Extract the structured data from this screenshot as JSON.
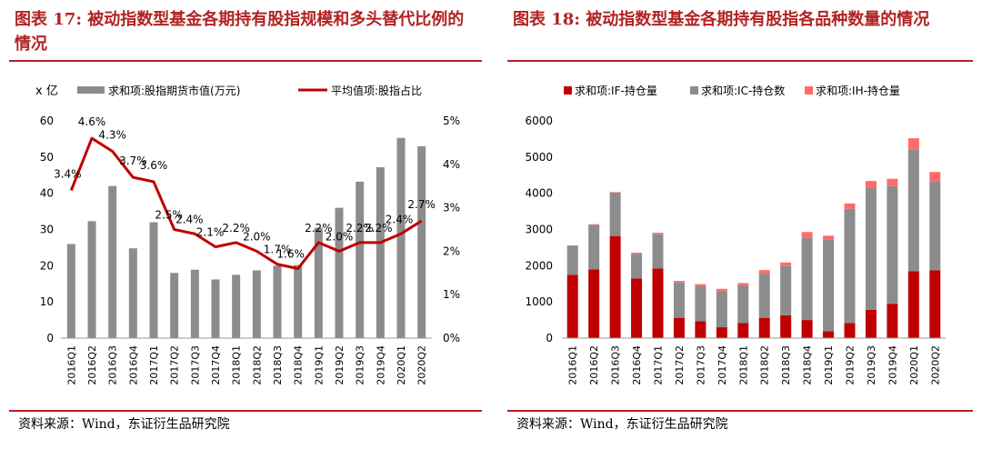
{
  "left_panel": {
    "title": "图表 17: 被动指数型基金各期持有股指规模和多头替代比例的情况",
    "source": "资料来源：Wind，东证衍生品研究院"
  },
  "right_panel": {
    "title": "图表 18: 被动指数型基金各期持有股指各品种数量的情况",
    "source": "资料来源：Wind，东证衍生品研究院"
  },
  "colors": {
    "accent": "#b22222",
    "bar_gray": "#8c8c8c",
    "line_red": "#c00000",
    "if_red": "#c00000",
    "ic_gray": "#8c8c8c",
    "ih_pink": "#ff6b6b"
  },
  "chart_data": [
    {
      "type": "bar",
      "unit_label": "x 亿",
      "categories": [
        "2016Q1",
        "2016Q2",
        "2016Q3",
        "2016Q4",
        "2017Q1",
        "2017Q2",
        "2017Q3",
        "2017Q4",
        "2018Q1",
        "2018Q2",
        "2018Q3",
        "2018Q4",
        "2019Q1",
        "2019Q2",
        "2019Q3",
        "2019Q4",
        "2020Q1",
        "2020Q2"
      ],
      "series": [
        {
          "name": "求和项:股指期货市值(万元)",
          "type": "bar",
          "axis": "left",
          "values": [
            26,
            32.3,
            42,
            24.8,
            32,
            18,
            18.9,
            16.2,
            17.5,
            18.7,
            20,
            20.2,
            30.5,
            36,
            43.2,
            47.2,
            55.3,
            53
          ]
        },
        {
          "name": "平均值项:股指占比",
          "type": "line",
          "axis": "right",
          "values": [
            3.4,
            4.6,
            4.3,
            3.7,
            3.6,
            2.5,
            2.4,
            2.1,
            2.2,
            2.0,
            1.7,
            1.6,
            2.2,
            2.0,
            2.2,
            2.2,
            2.4,
            2.7
          ],
          "labels": [
            "3.4%",
            "4.6%",
            "4.3%",
            "3.7%",
            "3.6%",
            "2.5%",
            "2.4%",
            "2.1%",
            "2.2%",
            "2.0%",
            "1.7%",
            "1.6%",
            "2.2%",
            "2.0%",
            "2.2%",
            "2.2%",
            "2.4%",
            "2.7%"
          ]
        }
      ],
      "ylim": [
        0,
        60
      ],
      "yticks": [
        "0",
        "10",
        "20",
        "30",
        "40",
        "50",
        "60"
      ],
      "y2lim": [
        0,
        5
      ],
      "y2ticks": [
        "0%",
        "1%",
        "2%",
        "3%",
        "4%",
        "5%"
      ],
      "legend_position": "top"
    },
    {
      "type": "bar",
      "stacked": true,
      "categories": [
        "2016Q1",
        "2016Q2",
        "2016Q3",
        "2016Q4",
        "2017Q1",
        "2017Q2",
        "2017Q3",
        "2017Q4",
        "2018Q1",
        "2018Q2",
        "2018Q3",
        "2018Q4",
        "2019Q1",
        "2019Q2",
        "2019Q3",
        "2019Q4",
        "2020Q1",
        "2020Q2"
      ],
      "series": [
        {
          "name": "求和项:IF-持仓量",
          "values": [
            1750,
            1900,
            2820,
            1650,
            1920,
            560,
            470,
            300,
            420,
            560,
            630,
            500,
            190,
            420,
            780,
            950,
            1850,
            1870
          ]
        },
        {
          "name": "求和项:IC-持仓数",
          "values": [
            800,
            1230,
            1200,
            680,
            950,
            980,
            960,
            1000,
            1040,
            1220,
            1360,
            2280,
            2540,
            3150,
            3380,
            3250,
            3350,
            2450
          ]
        },
        {
          "name": "求和项:IH-持仓量",
          "values": [
            10,
            15,
            15,
            30,
            40,
            40,
            60,
            60,
            60,
            100,
            100,
            150,
            100,
            150,
            180,
            200,
            320,
            270
          ]
        }
      ],
      "ylim": [
        0,
        6000
      ],
      "yticks": [
        "0",
        "1000",
        "2000",
        "3000",
        "4000",
        "5000",
        "6000"
      ],
      "legend_position": "top"
    }
  ]
}
